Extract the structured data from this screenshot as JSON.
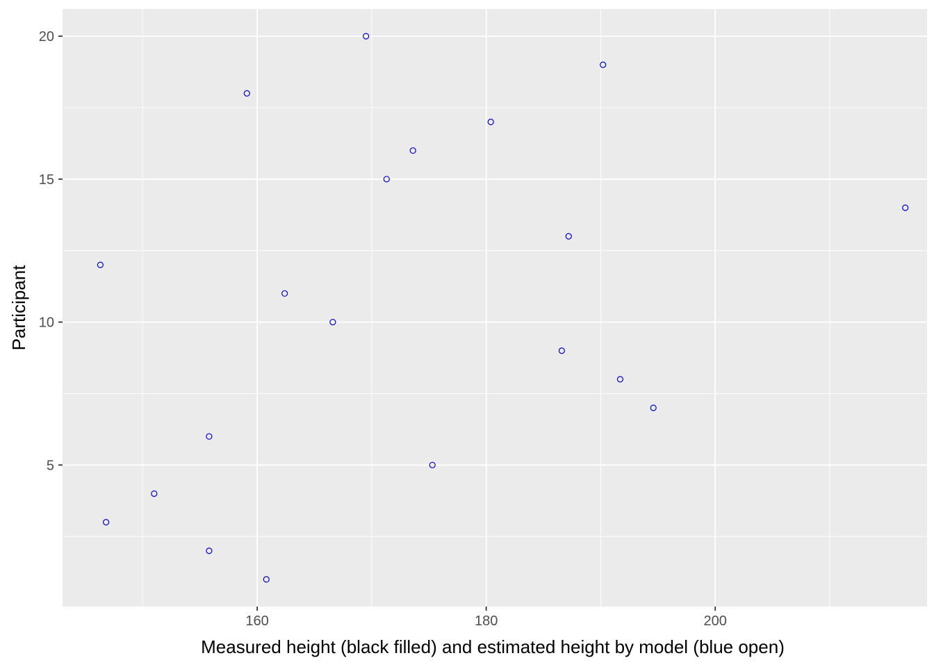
{
  "chart_data": {
    "type": "scatter",
    "title": "",
    "xlabel": "Measured height (black filled) and estimated height by model (blue open)",
    "ylabel": "Participant",
    "xlim": [
      143.0,
      218.5
    ],
    "ylim": [
      0.05,
      20.95
    ],
    "x_ticks": [
      160,
      180,
      200
    ],
    "x_minor": [
      150,
      170,
      190,
      210
    ],
    "y_ticks": [
      5,
      10,
      15,
      20
    ],
    "y_minor": [
      2.5,
      7.5,
      12.5,
      17.5
    ],
    "grid": true,
    "panel_color": "#ebebeb",
    "grid_color": "#ffffff",
    "point_color": "#0000cd",
    "series": [
      {
        "marker": "open-circle",
        "points": [
          {
            "x": 160.8,
            "y": 1
          },
          {
            "x": 155.8,
            "y": 2
          },
          {
            "x": 146.8,
            "y": 3
          },
          {
            "x": 151.0,
            "y": 4
          },
          {
            "x": 175.3,
            "y": 5
          },
          {
            "x": 155.8,
            "y": 6
          },
          {
            "x": 194.6,
            "y": 7
          },
          {
            "x": 191.7,
            "y": 8
          },
          {
            "x": 186.6,
            "y": 9
          },
          {
            "x": 166.6,
            "y": 10
          },
          {
            "x": 162.4,
            "y": 11
          },
          {
            "x": 146.3,
            "y": 12
          },
          {
            "x": 187.2,
            "y": 13
          },
          {
            "x": 216.6,
            "y": 14
          },
          {
            "x": 171.3,
            "y": 15
          },
          {
            "x": 173.6,
            "y": 16
          },
          {
            "x": 180.4,
            "y": 17
          },
          {
            "x": 159.1,
            "y": 18
          },
          {
            "x": 190.2,
            "y": 19
          },
          {
            "x": 169.5,
            "y": 20
          }
        ]
      }
    ]
  }
}
